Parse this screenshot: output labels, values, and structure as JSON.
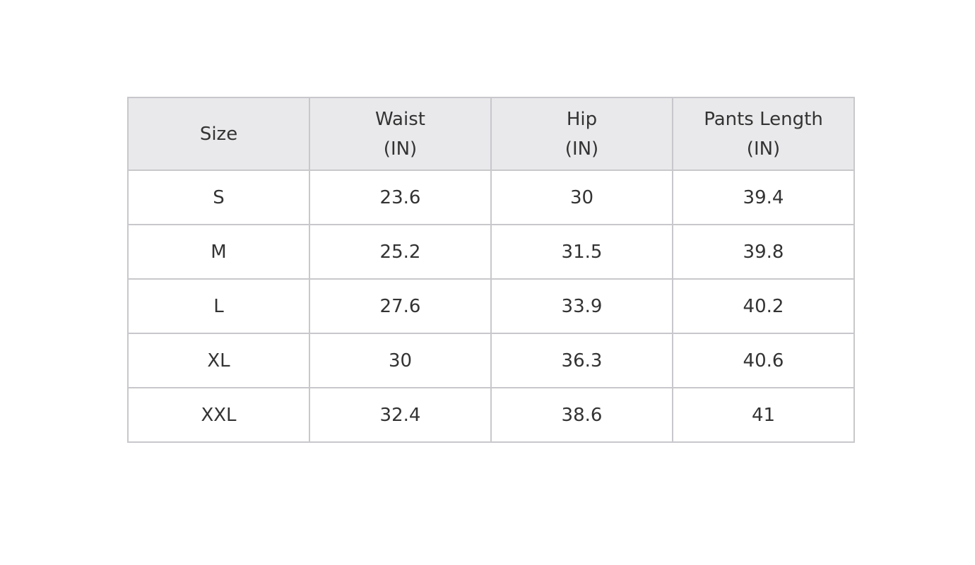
{
  "table": {
    "header": [
      {
        "name": "Size"
      },
      {
        "name": "Waist",
        "unit": "(IN)"
      },
      {
        "name": "Hip",
        "unit": "(IN)"
      },
      {
        "name": "Pants Length",
        "unit": "(IN)"
      }
    ],
    "rows": [
      [
        "S",
        23.6,
        30,
        39.4
      ],
      [
        "M",
        25.2,
        31.5,
        39.8
      ],
      [
        "L",
        27.6,
        33.9,
        40.2
      ],
      [
        "XL",
        30,
        36.3,
        40.6
      ],
      [
        "XXL",
        32.4,
        38.6,
        41
      ]
    ]
  }
}
